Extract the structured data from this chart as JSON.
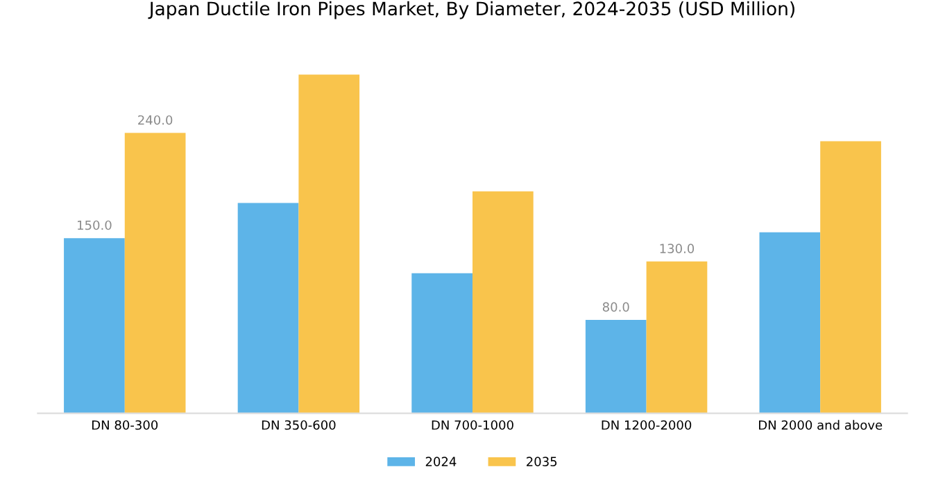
{
  "chart_data": {
    "type": "bar",
    "title": "Japan Ductile Iron Pipes Market, By Diameter, 2024-2035 (USD Million)",
    "categories": [
      "DN 80-300",
      "DN 350-600",
      "DN 700-1000",
      "DN 1200-2000",
      "DN 2000 and above"
    ],
    "series": [
      {
        "name": "2024",
        "color": "#5db4e8",
        "values": [
          150,
          180,
          120,
          80,
          155
        ],
        "value_labels": [
          "150.0",
          null,
          null,
          "80.0",
          null
        ]
      },
      {
        "name": "2035",
        "color": "#f9c44c",
        "values": [
          240,
          290,
          190,
          130,
          233
        ],
        "value_labels": [
          "240.0",
          null,
          null,
          "130.0",
          null
        ]
      }
    ],
    "tick_labels": "x",
    "grid": false,
    "legend": "bottom"
  }
}
